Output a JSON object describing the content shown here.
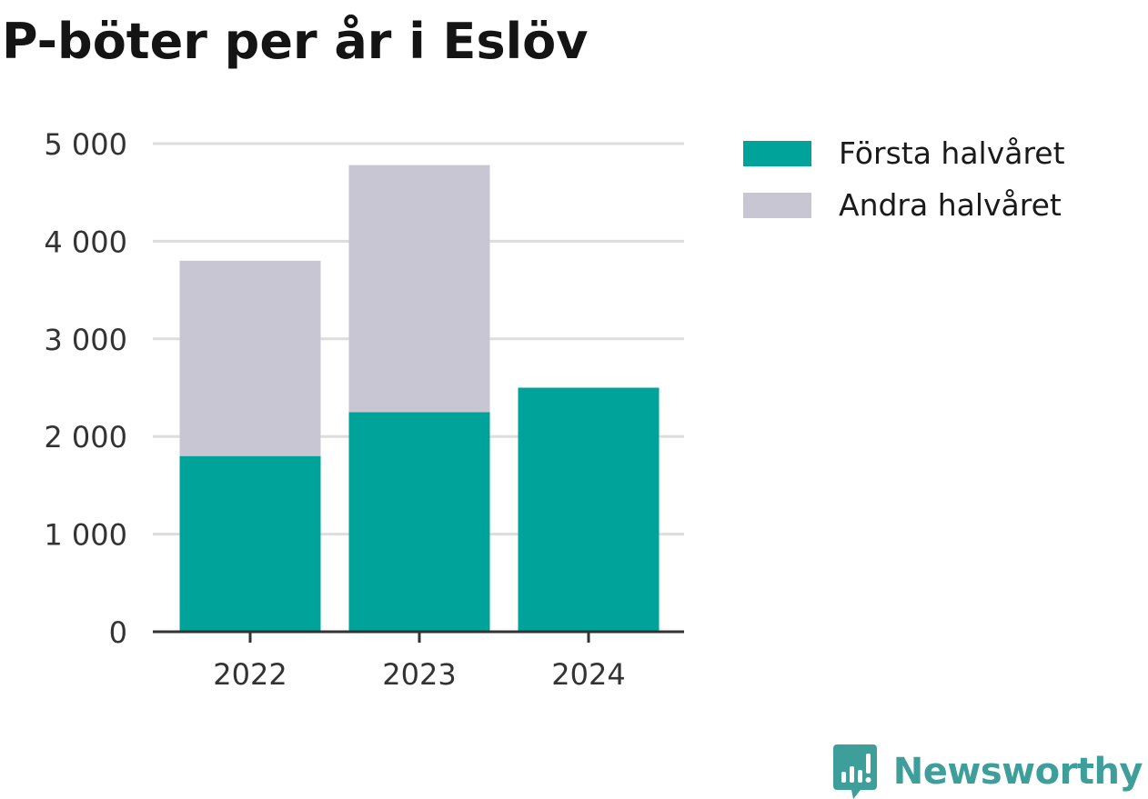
{
  "title": "P-böter per år i Eslöv",
  "colors": {
    "series_first": "#00a39a",
    "series_second": "#c7c6d2",
    "grid": "#dddddd",
    "axis": "#333333",
    "brand": "#3e9e9a"
  },
  "chart_data": {
    "type": "bar",
    "stacked": true,
    "title": "P-böter per år i Eslöv",
    "categories": [
      "2022",
      "2023",
      "2024"
    ],
    "series": [
      {
        "name": "Första halvåret",
        "values": [
          1800,
          2250,
          2500
        ]
      },
      {
        "name": "Andra halvåret",
        "values": [
          2000,
          2530,
          0
        ]
      }
    ],
    "ylim": [
      0,
      5000
    ],
    "yticks": [
      0,
      1000,
      2000,
      3000,
      4000,
      5000
    ],
    "ytick_labels": [
      "0",
      "1 000",
      "2 000",
      "3 000",
      "4 000",
      "5 000"
    ],
    "xlabel": "",
    "ylabel": "",
    "grid": true,
    "legend_position": "top-right"
  },
  "legend": [
    {
      "label": "Första halvåret",
      "icon": "legend-swatch-teal"
    },
    {
      "label": "Andra halvåret",
      "icon": "legend-swatch-grey"
    }
  ],
  "brand": {
    "name": "Newsworthy",
    "icon": "newsworthy-logo-icon"
  }
}
